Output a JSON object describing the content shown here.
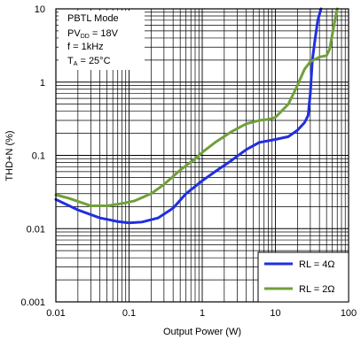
{
  "chart_data": {
    "type": "line",
    "xlabel": "Output Power (W)",
    "ylabel": "THD+N (%)",
    "x_scale": "log",
    "y_scale": "log",
    "xlim": [
      0.01,
      100
    ],
    "ylim": [
      0.001,
      10
    ],
    "grid": true,
    "x_ticks": [
      "0.01",
      "0.1",
      "1",
      "10",
      "100"
    ],
    "y_ticks": [
      "0.001",
      "0.01",
      "0.1",
      "1",
      "10"
    ],
    "conditions": {
      "line1": "PBTL Mode",
      "line2_main": "PV",
      "line2_sub": "DD",
      "line2_rest": " = 18V",
      "line3": "f = 1kHz",
      "line4_main": "T",
      "line4_sub": "A",
      "line4_rest": " = 25°C"
    },
    "legend_position": "bottom-right",
    "colors": {
      "rl4": "#1f2fe0",
      "rl2": "#6fa03a"
    },
    "series": [
      {
        "name": "RL = 4Ω",
        "x": [
          0.01,
          0.02,
          0.04,
          0.07,
          0.1,
          0.15,
          0.25,
          0.4,
          0.6,
          1,
          1.5,
          2.5,
          4,
          6,
          10,
          15,
          20,
          25,
          28,
          30,
          32,
          35,
          38,
          42
        ],
        "y": [
          0.025,
          0.018,
          0.014,
          0.0125,
          0.012,
          0.0123,
          0.014,
          0.019,
          0.03,
          0.045,
          0.06,
          0.085,
          0.12,
          0.15,
          0.165,
          0.18,
          0.22,
          0.28,
          0.35,
          0.7,
          2,
          4,
          7,
          10
        ]
      },
      {
        "name": "RL = 2Ω",
        "x": [
          0.01,
          0.015,
          0.03,
          0.05,
          0.08,
          0.12,
          0.2,
          0.3,
          0.5,
          0.8,
          1,
          1.5,
          2.5,
          4,
          6,
          8,
          10,
          15,
          20,
          25,
          30,
          40,
          50,
          55,
          60,
          65,
          70
        ],
        "y": [
          0.029,
          0.026,
          0.0205,
          0.0205,
          0.022,
          0.024,
          0.03,
          0.04,
          0.063,
          0.09,
          0.11,
          0.15,
          0.21,
          0.27,
          0.3,
          0.31,
          0.33,
          0.5,
          0.9,
          1.5,
          1.9,
          2.2,
          2.3,
          2.8,
          4.5,
          7,
          10
        ]
      }
    ]
  }
}
